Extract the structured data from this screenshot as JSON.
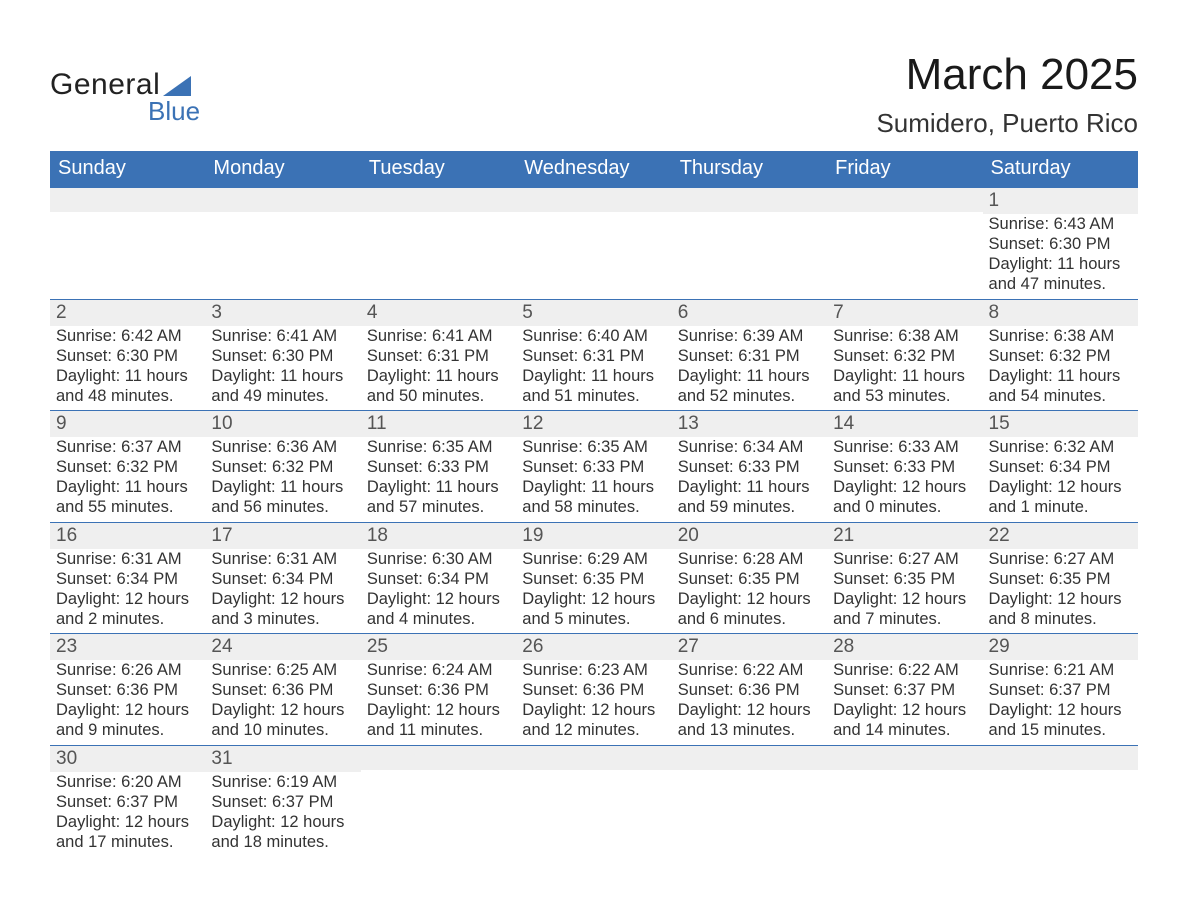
{
  "logo": {
    "text_main": "General",
    "text_sub": "Blue",
    "sail_color": "#3b72b5",
    "main_color": "#222222",
    "sub_color": "#3b72b5"
  },
  "header": {
    "month_title": "March 2025",
    "location": "Sumidero, Puerto Rico",
    "title_fontsize": 44,
    "location_fontsize": 26,
    "title_color": "#1a1a1a"
  },
  "calendar": {
    "type": "table",
    "columns": [
      "Sunday",
      "Monday",
      "Tuesday",
      "Wednesday",
      "Thursday",
      "Friday",
      "Saturday"
    ],
    "header_bg": "#3b72b5",
    "header_text_color": "#ffffff",
    "header_fontsize": 20,
    "row_border_color": "#3b72b5",
    "daynum_bg": "#efefef",
    "daynum_color": "#555555",
    "daynum_fontsize": 19,
    "body_fontsize": 16.5,
    "body_color": "#333333",
    "weeks": [
      [
        {
          "day": "",
          "sunrise": "",
          "sunset": "",
          "daylight": ""
        },
        {
          "day": "",
          "sunrise": "",
          "sunset": "",
          "daylight": ""
        },
        {
          "day": "",
          "sunrise": "",
          "sunset": "",
          "daylight": ""
        },
        {
          "day": "",
          "sunrise": "",
          "sunset": "",
          "daylight": ""
        },
        {
          "day": "",
          "sunrise": "",
          "sunset": "",
          "daylight": ""
        },
        {
          "day": "",
          "sunrise": "",
          "sunset": "",
          "daylight": ""
        },
        {
          "day": "1",
          "sunrise": "Sunrise: 6:43 AM",
          "sunset": "Sunset: 6:30 PM",
          "daylight": "Daylight: 11 hours and 47 minutes."
        }
      ],
      [
        {
          "day": "2",
          "sunrise": "Sunrise: 6:42 AM",
          "sunset": "Sunset: 6:30 PM",
          "daylight": "Daylight: 11 hours and 48 minutes."
        },
        {
          "day": "3",
          "sunrise": "Sunrise: 6:41 AM",
          "sunset": "Sunset: 6:30 PM",
          "daylight": "Daylight: 11 hours and 49 minutes."
        },
        {
          "day": "4",
          "sunrise": "Sunrise: 6:41 AM",
          "sunset": "Sunset: 6:31 PM",
          "daylight": "Daylight: 11 hours and 50 minutes."
        },
        {
          "day": "5",
          "sunrise": "Sunrise: 6:40 AM",
          "sunset": "Sunset: 6:31 PM",
          "daylight": "Daylight: 11 hours and 51 minutes."
        },
        {
          "day": "6",
          "sunrise": "Sunrise: 6:39 AM",
          "sunset": "Sunset: 6:31 PM",
          "daylight": "Daylight: 11 hours and 52 minutes."
        },
        {
          "day": "7",
          "sunrise": "Sunrise: 6:38 AM",
          "sunset": "Sunset: 6:32 PM",
          "daylight": "Daylight: 11 hours and 53 minutes."
        },
        {
          "day": "8",
          "sunrise": "Sunrise: 6:38 AM",
          "sunset": "Sunset: 6:32 PM",
          "daylight": "Daylight: 11 hours and 54 minutes."
        }
      ],
      [
        {
          "day": "9",
          "sunrise": "Sunrise: 6:37 AM",
          "sunset": "Sunset: 6:32 PM",
          "daylight": "Daylight: 11 hours and 55 minutes."
        },
        {
          "day": "10",
          "sunrise": "Sunrise: 6:36 AM",
          "sunset": "Sunset: 6:32 PM",
          "daylight": "Daylight: 11 hours and 56 minutes."
        },
        {
          "day": "11",
          "sunrise": "Sunrise: 6:35 AM",
          "sunset": "Sunset: 6:33 PM",
          "daylight": "Daylight: 11 hours and 57 minutes."
        },
        {
          "day": "12",
          "sunrise": "Sunrise: 6:35 AM",
          "sunset": "Sunset: 6:33 PM",
          "daylight": "Daylight: 11 hours and 58 minutes."
        },
        {
          "day": "13",
          "sunrise": "Sunrise: 6:34 AM",
          "sunset": "Sunset: 6:33 PM",
          "daylight": "Daylight: 11 hours and 59 minutes."
        },
        {
          "day": "14",
          "sunrise": "Sunrise: 6:33 AM",
          "sunset": "Sunset: 6:33 PM",
          "daylight": "Daylight: 12 hours and 0 minutes."
        },
        {
          "day": "15",
          "sunrise": "Sunrise: 6:32 AM",
          "sunset": "Sunset: 6:34 PM",
          "daylight": "Daylight: 12 hours and 1 minute."
        }
      ],
      [
        {
          "day": "16",
          "sunrise": "Sunrise: 6:31 AM",
          "sunset": "Sunset: 6:34 PM",
          "daylight": "Daylight: 12 hours and 2 minutes."
        },
        {
          "day": "17",
          "sunrise": "Sunrise: 6:31 AM",
          "sunset": "Sunset: 6:34 PM",
          "daylight": "Daylight: 12 hours and 3 minutes."
        },
        {
          "day": "18",
          "sunrise": "Sunrise: 6:30 AM",
          "sunset": "Sunset: 6:34 PM",
          "daylight": "Daylight: 12 hours and 4 minutes."
        },
        {
          "day": "19",
          "sunrise": "Sunrise: 6:29 AM",
          "sunset": "Sunset: 6:35 PM",
          "daylight": "Daylight: 12 hours and 5 minutes."
        },
        {
          "day": "20",
          "sunrise": "Sunrise: 6:28 AM",
          "sunset": "Sunset: 6:35 PM",
          "daylight": "Daylight: 12 hours and 6 minutes."
        },
        {
          "day": "21",
          "sunrise": "Sunrise: 6:27 AM",
          "sunset": "Sunset: 6:35 PM",
          "daylight": "Daylight: 12 hours and 7 minutes."
        },
        {
          "day": "22",
          "sunrise": "Sunrise: 6:27 AM",
          "sunset": "Sunset: 6:35 PM",
          "daylight": "Daylight: 12 hours and 8 minutes."
        }
      ],
      [
        {
          "day": "23",
          "sunrise": "Sunrise: 6:26 AM",
          "sunset": "Sunset: 6:36 PM",
          "daylight": "Daylight: 12 hours and 9 minutes."
        },
        {
          "day": "24",
          "sunrise": "Sunrise: 6:25 AM",
          "sunset": "Sunset: 6:36 PM",
          "daylight": "Daylight: 12 hours and 10 minutes."
        },
        {
          "day": "25",
          "sunrise": "Sunrise: 6:24 AM",
          "sunset": "Sunset: 6:36 PM",
          "daylight": "Daylight: 12 hours and 11 minutes."
        },
        {
          "day": "26",
          "sunrise": "Sunrise: 6:23 AM",
          "sunset": "Sunset: 6:36 PM",
          "daylight": "Daylight: 12 hours and 12 minutes."
        },
        {
          "day": "27",
          "sunrise": "Sunrise: 6:22 AM",
          "sunset": "Sunset: 6:36 PM",
          "daylight": "Daylight: 12 hours and 13 minutes."
        },
        {
          "day": "28",
          "sunrise": "Sunrise: 6:22 AM",
          "sunset": "Sunset: 6:37 PM",
          "daylight": "Daylight: 12 hours and 14 minutes."
        },
        {
          "day": "29",
          "sunrise": "Sunrise: 6:21 AM",
          "sunset": "Sunset: 6:37 PM",
          "daylight": "Daylight: 12 hours and 15 minutes."
        }
      ],
      [
        {
          "day": "30",
          "sunrise": "Sunrise: 6:20 AM",
          "sunset": "Sunset: 6:37 PM",
          "daylight": "Daylight: 12 hours and 17 minutes."
        },
        {
          "day": "31",
          "sunrise": "Sunrise: 6:19 AM",
          "sunset": "Sunset: 6:37 PM",
          "daylight": "Daylight: 12 hours and 18 minutes."
        },
        {
          "day": "",
          "sunrise": "",
          "sunset": "",
          "daylight": ""
        },
        {
          "day": "",
          "sunrise": "",
          "sunset": "",
          "daylight": ""
        },
        {
          "day": "",
          "sunrise": "",
          "sunset": "",
          "daylight": ""
        },
        {
          "day": "",
          "sunrise": "",
          "sunset": "",
          "daylight": ""
        },
        {
          "day": "",
          "sunrise": "",
          "sunset": "",
          "daylight": ""
        }
      ]
    ]
  }
}
